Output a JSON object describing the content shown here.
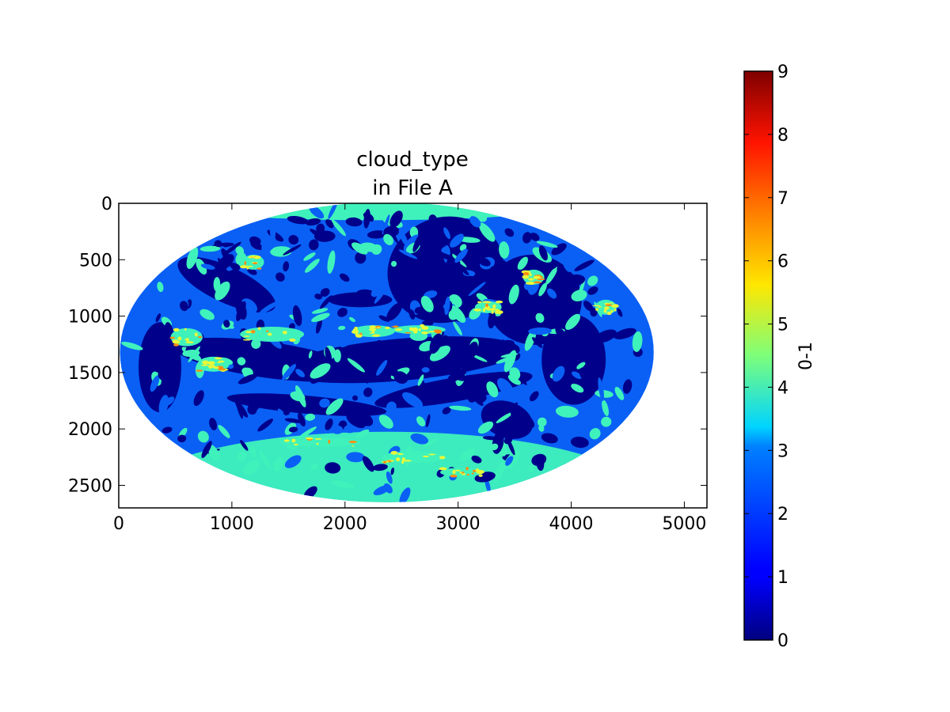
{
  "chart_data": {
    "type": "heatmap",
    "title": [
      "cloud_type",
      "in File A"
    ],
    "xlabel": "",
    "ylabel": "",
    "xlim": [
      0,
      5200
    ],
    "ylim": [
      2700,
      0
    ],
    "x_ticks": [
      "0",
      "1000",
      "2000",
      "3000",
      "4000",
      "5000"
    ],
    "x_tick_values": [
      0,
      1000,
      2000,
      3000,
      4000,
      5000
    ],
    "y_ticks": [
      "0",
      "500",
      "1000",
      "1500",
      "2000",
      "2500"
    ],
    "y_tick_values": [
      0,
      500,
      1000,
      1500,
      2000,
      2500
    ],
    "disk": {
      "center_x": 2370,
      "center_y": 1320,
      "radius_x": 2360,
      "radius_y": 1330
    },
    "colorbar": {
      "label": "0-1",
      "range": [
        0,
        9
      ],
      "tick_labels": [
        "0",
        "1",
        "2",
        "3",
        "4",
        "5",
        "6",
        "7",
        "8",
        "9"
      ],
      "colormap": "jet"
    },
    "regions": [
      {
        "name": "background-blue",
        "value": 2.0
      },
      {
        "name": "dark-clear",
        "value": 0.2
      },
      {
        "name": "north-band",
        "value": 3.9
      },
      {
        "name": "south-band",
        "value": 3.9
      },
      {
        "name": "high-cloud",
        "value": 5.5
      },
      {
        "name": "deep-convection",
        "value": 6.8
      }
    ],
    "colors": {
      "dark": "#00008b",
      "background": "#0a60f5",
      "teal": "#3ff2bb",
      "yellow": "#e8f83a",
      "orange": "#ff8c10"
    }
  }
}
